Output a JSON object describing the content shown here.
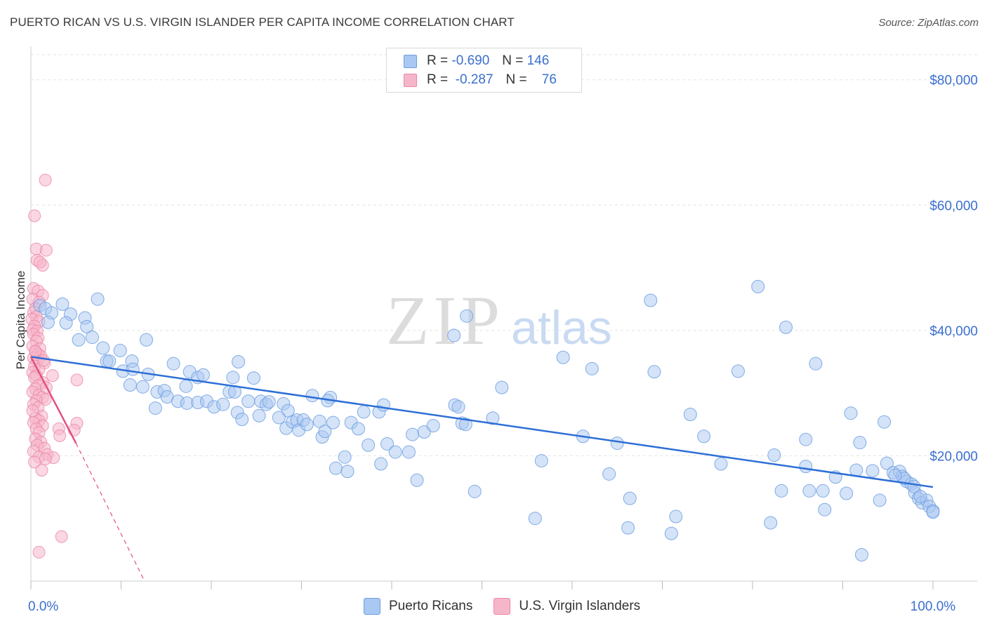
{
  "title": "PUERTO RICAN VS U.S. VIRGIN ISLANDER PER CAPITA INCOME CORRELATION CHART",
  "source": "Source: ZipAtlas.com",
  "watermark": {
    "zip": "ZIP",
    "atlas": "atlas"
  },
  "legend": {
    "rows": [
      {
        "r_label": "R =",
        "r_value": "-0.690",
        "n_label": "N =",
        "n_value": "146",
        "color": "#a9c8f2"
      },
      {
        "r_label": "R =",
        "r_value": "-0.287",
        "n_label": "N =",
        "n_value": "76",
        "color": "#f6b6ca"
      }
    ]
  },
  "bottom_legend": [
    {
      "label": "Puerto Ricans",
      "color": "#a9c8f2"
    },
    {
      "label": "U.S. Virgin Islanders",
      "color": "#f6b6ca"
    }
  ],
  "colors": {
    "blue_fill": "#a9c8f2",
    "blue_stroke": "#6f9fe0",
    "blue_line": "#2d6fd6",
    "pink_fill": "#f6b6ca",
    "pink_stroke": "#ec86a7",
    "pink_line": "#e2507f",
    "axis_text": "#3a6fd0",
    "grid": "#e3e3e3"
  },
  "chart_data": {
    "type": "scatter",
    "ylabel": "Per Capita Income",
    "xlim": [
      0,
      100
    ],
    "ylim": [
      0,
      84000
    ],
    "y_ticks": [
      20000,
      40000,
      60000,
      80000
    ],
    "y_tick_labels": [
      "$20,000",
      "$40,000",
      "$60,000",
      "$80,000"
    ],
    "x_tick_labels": [
      {
        "x": 0,
        "label": "0.0%"
      },
      {
        "x": 100,
        "label": "100.0%"
      }
    ],
    "grid": true,
    "series": [
      {
        "name": "Puerto Ricans",
        "trend": {
          "x0": 0,
          "y0": 35800,
          "x1": 100,
          "y1": 15000
        },
        "points": [
          [
            1.0,
            44000
          ],
          [
            1.6,
            43500
          ],
          [
            2.3,
            42800
          ],
          [
            3.5,
            44200
          ],
          [
            4.4,
            42600
          ],
          [
            1.9,
            41300
          ],
          [
            3.9,
            41200
          ],
          [
            6.0,
            42000
          ],
          [
            6.2,
            40600
          ],
          [
            7.4,
            45000
          ],
          [
            5.3,
            38500
          ],
          [
            6.8,
            38900
          ],
          [
            8.0,
            37200
          ],
          [
            9.9,
            36800
          ],
          [
            8.4,
            35100
          ],
          [
            8.7,
            35100
          ],
          [
            11.2,
            35100
          ],
          [
            12.8,
            38500
          ],
          [
            10.2,
            33500
          ],
          [
            11.3,
            33800
          ],
          [
            13.0,
            33000
          ],
          [
            15.8,
            34700
          ],
          [
            17.2,
            31100
          ],
          [
            17.6,
            33400
          ],
          [
            18.5,
            32500
          ],
          [
            19.1,
            32900
          ],
          [
            22.4,
            32500
          ],
          [
            23.0,
            35000
          ],
          [
            24.7,
            32400
          ],
          [
            11.0,
            31300
          ],
          [
            12.4,
            31000
          ],
          [
            14.0,
            30200
          ],
          [
            14.8,
            30400
          ],
          [
            15.1,
            29400
          ],
          [
            16.3,
            28700
          ],
          [
            17.3,
            28400
          ],
          [
            18.5,
            28500
          ],
          [
            19.5,
            28700
          ],
          [
            20.3,
            27800
          ],
          [
            21.3,
            28200
          ],
          [
            22.0,
            30200
          ],
          [
            22.6,
            30200
          ],
          [
            24.1,
            28700
          ],
          [
            25.5,
            28700
          ],
          [
            26.1,
            28200
          ],
          [
            26.4,
            28600
          ],
          [
            28.0,
            28300
          ],
          [
            28.5,
            27200
          ],
          [
            31.2,
            29600
          ],
          [
            33.2,
            29300
          ],
          [
            13.8,
            27600
          ],
          [
            22.9,
            26900
          ],
          [
            23.4,
            25800
          ],
          [
            25.3,
            26400
          ],
          [
            27.5,
            26100
          ],
          [
            28.3,
            24400
          ],
          [
            29.0,
            25400
          ],
          [
            29.5,
            25700
          ],
          [
            29.7,
            24100
          ],
          [
            30.2,
            25700
          ],
          [
            30.6,
            25000
          ],
          [
            32.0,
            25500
          ],
          [
            32.3,
            23000
          ],
          [
            32.6,
            23900
          ],
          [
            33.5,
            25300
          ],
          [
            35.5,
            25300
          ],
          [
            36.3,
            24300
          ],
          [
            36.9,
            27000
          ],
          [
            38.6,
            27000
          ],
          [
            39.1,
            28100
          ],
          [
            32.9,
            28800
          ],
          [
            34.8,
            19800
          ],
          [
            33.8,
            18000
          ],
          [
            35.1,
            17500
          ],
          [
            37.4,
            21700
          ],
          [
            38.8,
            18700
          ],
          [
            39.5,
            21900
          ],
          [
            40.4,
            20600
          ],
          [
            41.9,
            20600
          ],
          [
            42.3,
            23400
          ],
          [
            42.8,
            16100
          ],
          [
            43.6,
            23800
          ],
          [
            44.6,
            24800
          ],
          [
            47.0,
            28100
          ],
          [
            47.4,
            27800
          ],
          [
            47.8,
            25200
          ],
          [
            48.2,
            25000
          ],
          [
            49.2,
            14300
          ],
          [
            51.2,
            26000
          ],
          [
            56.6,
            19200
          ],
          [
            46.9,
            39200
          ],
          [
            48.3,
            42300
          ],
          [
            52.2,
            30900
          ],
          [
            55.9,
            10000
          ],
          [
            59.0,
            35700
          ],
          [
            61.2,
            23100
          ],
          [
            62.2,
            33900
          ],
          [
            64.1,
            17100
          ],
          [
            65.0,
            22000
          ],
          [
            66.4,
            13200
          ],
          [
            66.2,
            8500
          ],
          [
            68.7,
            44800
          ],
          [
            69.1,
            33400
          ],
          [
            71.0,
            7600
          ],
          [
            71.5,
            10300
          ],
          [
            73.1,
            26600
          ],
          [
            74.6,
            23100
          ],
          [
            76.5,
            18700
          ],
          [
            78.4,
            33500
          ],
          [
            80.6,
            47000
          ],
          [
            82.0,
            9300
          ],
          [
            82.4,
            20100
          ],
          [
            83.2,
            14400
          ],
          [
            83.7,
            40500
          ],
          [
            85.9,
            18300
          ],
          [
            86.3,
            14400
          ],
          [
            85.9,
            22600
          ],
          [
            87.0,
            34700
          ],
          [
            87.8,
            14400
          ],
          [
            88.0,
            11400
          ],
          [
            89.2,
            16600
          ],
          [
            90.4,
            14000
          ],
          [
            90.9,
            26800
          ],
          [
            91.5,
            17700
          ],
          [
            91.9,
            22100
          ],
          [
            92.1,
            4200
          ],
          [
            93.3,
            17600
          ],
          [
            94.1,
            12900
          ],
          [
            94.6,
            25400
          ],
          [
            94.9,
            18800
          ],
          [
            95.6,
            17300
          ],
          [
            96.3,
            17500
          ],
          [
            96.6,
            16700
          ],
          [
            97.1,
            15900
          ],
          [
            97.6,
            15500
          ],
          [
            98.0,
            14100
          ],
          [
            98.4,
            13200
          ],
          [
            98.8,
            12500
          ],
          [
            99.3,
            12900
          ],
          [
            99.6,
            11900
          ],
          [
            100.0,
            11200
          ],
          [
            96.8,
            16400
          ],
          [
            95.8,
            16900
          ],
          [
            97.9,
            15100
          ],
          [
            98.6,
            13500
          ],
          [
            100.0,
            11000
          ]
        ]
      },
      {
        "name": "U.S. Virgin Islanders",
        "trend": {
          "x0": 0,
          "y0": 35800,
          "x1": 5.0,
          "y1": 22000,
          "dash_to_x": 12.6,
          "dash_to_y": 0
        },
        "points": [
          [
            1.6,
            64000
          ],
          [
            0.4,
            58300
          ],
          [
            0.6,
            53000
          ],
          [
            1.7,
            52800
          ],
          [
            0.7,
            51200
          ],
          [
            1.3,
            50400
          ],
          [
            1.0,
            50900
          ],
          [
            0.3,
            46700
          ],
          [
            0.8,
            46300
          ],
          [
            1.3,
            45600
          ],
          [
            0.2,
            45000
          ],
          [
            0.9,
            44500
          ],
          [
            0.5,
            43500
          ],
          [
            0.3,
            42900
          ],
          [
            0.6,
            42200
          ],
          [
            0.1,
            41800
          ],
          [
            0.9,
            41400
          ],
          [
            0.4,
            40700
          ],
          [
            0.2,
            40100
          ],
          [
            0.7,
            39900
          ],
          [
            0.3,
            39400
          ],
          [
            0.8,
            38800
          ],
          [
            0.6,
            38300
          ],
          [
            0.2,
            37500
          ],
          [
            1.0,
            37100
          ],
          [
            0.5,
            36600
          ],
          [
            0.8,
            36200
          ],
          [
            1.1,
            35900
          ],
          [
            0.3,
            35600
          ],
          [
            0.7,
            35100
          ],
          [
            0.4,
            34300
          ],
          [
            1.5,
            34800
          ],
          [
            0.9,
            33800
          ],
          [
            0.2,
            33300
          ],
          [
            0.6,
            32800
          ],
          [
            2.4,
            32800
          ],
          [
            5.1,
            32100
          ],
          [
            0.4,
            32500
          ],
          [
            1.3,
            31700
          ],
          [
            0.8,
            31200
          ],
          [
            0.5,
            30700
          ],
          [
            0.2,
            30200
          ],
          [
            0.9,
            29700
          ],
          [
            1.3,
            29300
          ],
          [
            1.6,
            29000
          ],
          [
            0.6,
            28800
          ],
          [
            0.3,
            28200
          ],
          [
            0.8,
            27700
          ],
          [
            1.2,
            26300
          ],
          [
            0.5,
            26000
          ],
          [
            0.9,
            25600
          ],
          [
            0.3,
            25300
          ],
          [
            5.1,
            25200
          ],
          [
            1.3,
            24800
          ],
          [
            0.6,
            24300
          ],
          [
            3.1,
            24300
          ],
          [
            4.8,
            24100
          ],
          [
            0.9,
            23700
          ],
          [
            3.2,
            23200
          ],
          [
            0.5,
            22700
          ],
          [
            1.1,
            22200
          ],
          [
            0.7,
            21700
          ],
          [
            1.5,
            21200
          ],
          [
            0.3,
            20700
          ],
          [
            1.8,
            20200
          ],
          [
            0.9,
            19800
          ],
          [
            2.5,
            19700
          ],
          [
            1.6,
            19500
          ],
          [
            0.4,
            19000
          ],
          [
            1.2,
            17700
          ],
          [
            3.4,
            7100
          ],
          [
            0.9,
            4600
          ],
          [
            1.4,
            35200
          ],
          [
            0.5,
            36700
          ],
          [
            1.7,
            30900
          ],
          [
            0.2,
            27200
          ]
        ]
      }
    ]
  }
}
